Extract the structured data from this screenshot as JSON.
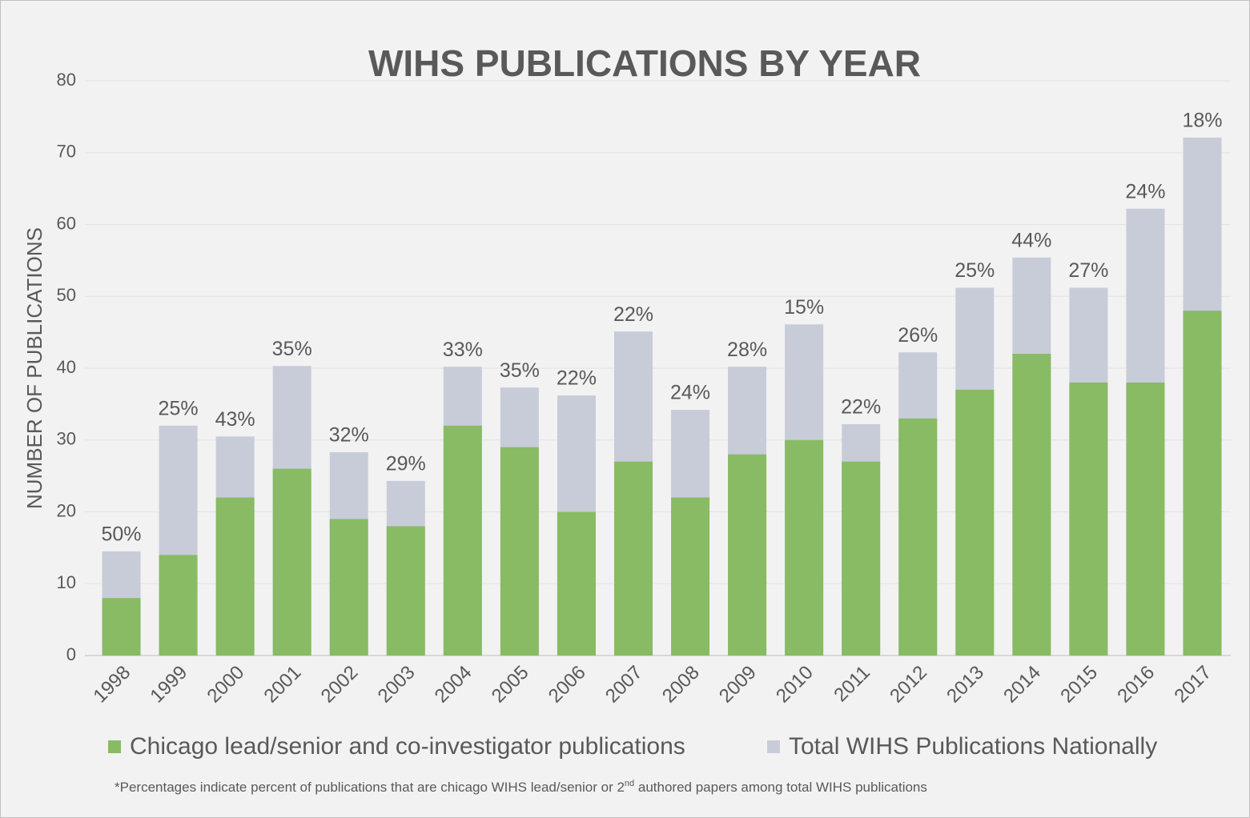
{
  "chart_data": {
    "type": "bar",
    "title": "WIHS PUBLICATIONS BY YEAR",
    "y_label": "NUMBER OF PUBLICATIONS",
    "categories": [
      "1998",
      "1999",
      "2000",
      "2001",
      "2002",
      "2003",
      "2004",
      "2005",
      "2006",
      "2007",
      "2008",
      "2009",
      "2010",
      "2011",
      "2012",
      "2013",
      "2014",
      "2015",
      "2016",
      "2017"
    ],
    "series": [
      {
        "name": "Total WIHS Publications Nationally",
        "color": "#c8ccd9",
        "values": [
          14.5,
          32,
          30.5,
          40.3,
          28.3,
          24.3,
          40.2,
          37.3,
          36.2,
          45.1,
          34.2,
          40.2,
          46.1,
          32.2,
          42.2,
          51.2,
          55.4,
          51.2,
          62.2,
          72.1
        ]
      },
      {
        "name": "Chicago lead/senior and co-investigator publications",
        "color": "#88bb64",
        "values": [
          8,
          14,
          22,
          26,
          19,
          18,
          32,
          29,
          20,
          27,
          22,
          28,
          30,
          27,
          33,
          37,
          42,
          38,
          38,
          48
        ]
      }
    ],
    "legend_order": [
      1,
      0
    ],
    "annotations": [
      "50%",
      "25%",
      "43%",
      "35%",
      "32%",
      "29%",
      "33%",
      "35%",
      "22%",
      "22%",
      "24%",
      "28%",
      "15%",
      "22%",
      "26%",
      "25%",
      "44%",
      "27%",
      "24%",
      "18%"
    ],
    "footnote": [
      "*Percentages indicate percent of publications that are chicago WIHS lead/senior or 2",
      "nd",
      " authored papers among total WIHS publications"
    ],
    "ylim": [
      0,
      80
    ],
    "yticks": [
      0,
      10,
      20,
      30,
      40,
      50,
      60,
      70,
      80
    ],
    "grid": true
  }
}
